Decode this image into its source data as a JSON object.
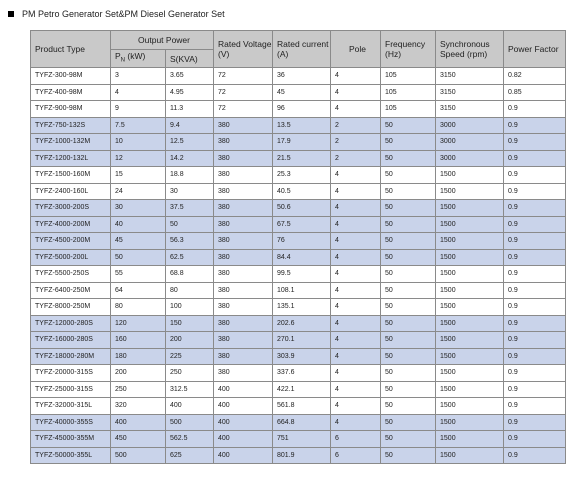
{
  "header": {
    "title": "PM Petro  Generator Set&PM Diesel Generator Set"
  },
  "table": {
    "columns": {
      "product_type": "Product Type",
      "output_power": "Output  Power",
      "rated_voltage": "Rated Voltage (V)",
      "rated_current": "Rated current (A)",
      "pole": "Pole",
      "frequency": "Frequency (Hz)",
      "synchronous_speed": "Synchronous Speed  (rpm)",
      "power_factor": "Power Factor"
    },
    "subcolumns": {
      "pn_main": "P",
      "pn_sub": "N",
      "pn_unit": " (kW)",
      "s": "S(KVA)"
    },
    "rows": [
      [
        "TYFZ-300-98M",
        3,
        3.65,
        72,
        36,
        4,
        105,
        3150,
        0.82
      ],
      [
        "TYFZ-400-98M",
        4,
        4.95,
        72,
        45,
        4,
        105,
        3150,
        0.85
      ],
      [
        "TYFZ-900-98M",
        9,
        11.3,
        72,
        96,
        4,
        105,
        3150,
        0.9
      ],
      [
        "TYFZ-750-132S",
        7.5,
        9.4,
        380,
        13.5,
        2,
        50,
        3000,
        0.9
      ],
      [
        "TYFZ-1000-132M",
        10,
        12.5,
        380,
        17.9,
        2,
        50,
        3000,
        0.9
      ],
      [
        "TYFZ-1200-132L",
        12,
        14.2,
        380,
        21.5,
        2,
        50,
        3000,
        0.9
      ],
      [
        "TYFZ-1500-160M",
        15,
        18.8,
        380,
        25.3,
        4,
        50,
        1500,
        0.9
      ],
      [
        "TYFZ-2400-160L",
        24,
        30,
        380,
        40.5,
        4,
        50,
        1500,
        0.9
      ],
      [
        "TYFZ-3000-200S",
        30,
        37.5,
        380,
        50.6,
        4,
        50,
        1500,
        0.9
      ],
      [
        "TYFZ-4000-200M",
        40,
        50,
        380,
        67.5,
        4,
        50,
        1500,
        0.9
      ],
      [
        "TYFZ-4500-200M",
        45,
        56.3,
        380,
        76,
        4,
        50,
        1500,
        0.9
      ],
      [
        "TYFZ-5000-200L",
        50,
        62.5,
        380,
        84.4,
        4,
        50,
        1500,
        0.9
      ],
      [
        "TYFZ-5500-250S",
        55,
        68.8,
        380,
        99.5,
        4,
        50,
        1500,
        0.9
      ],
      [
        "TYFZ-6400-250M",
        64,
        80,
        380,
        108.1,
        4,
        50,
        1500,
        0.9
      ],
      [
        "TYFZ-8000-250M",
        80,
        100,
        380,
        135.1,
        4,
        50,
        1500,
        0.9
      ],
      [
        "TYFZ-12000-280S",
        120,
        150,
        380,
        202.6,
        4,
        50,
        1500,
        0.9
      ],
      [
        "TYFZ-16000-280S",
        160,
        200,
        380,
        270.1,
        4,
        50,
        1500,
        0.9
      ],
      [
        "TYFZ-18000-280M",
        180,
        225,
        380,
        303.9,
        4,
        50,
        1500,
        0.9
      ],
      [
        "TYFZ-20000-315S",
        200,
        250,
        380,
        337.6,
        4,
        50,
        1500,
        0.9
      ],
      [
        "TYFZ-25000-315S",
        250,
        312.5,
        400,
        422.1,
        4,
        50,
        1500,
        0.9
      ],
      [
        "TYFZ-32000-315L",
        320,
        400,
        400,
        561.8,
        4,
        50,
        1500,
        0.9
      ],
      [
        "TYFZ-40000-355S",
        400,
        500,
        400,
        664.8,
        4,
        50,
        1500,
        0.9
      ],
      [
        "TYFZ-45000-355M",
        450,
        562.5,
        400,
        751,
        6,
        50,
        1500,
        0.9
      ],
      [
        "TYFZ-50000-355L",
        500,
        625,
        400,
        801.9,
        6,
        50,
        1500,
        0.9
      ]
    ]
  }
}
